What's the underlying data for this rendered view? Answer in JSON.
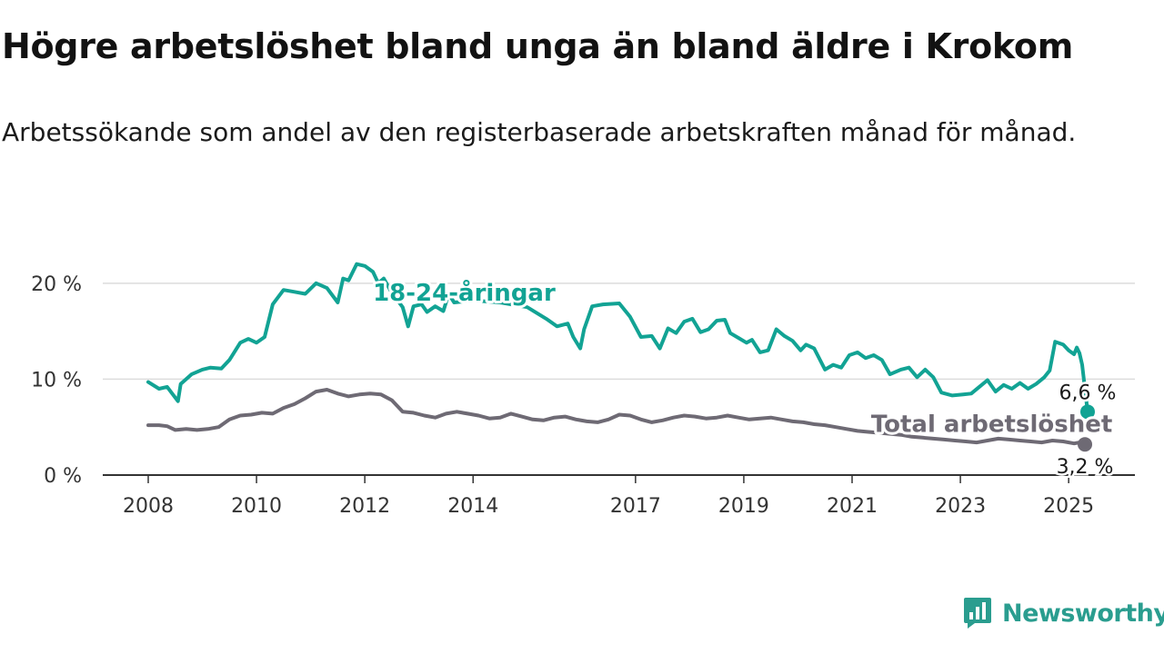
{
  "title": "Högre arbetslöshet bland unga än bland äldre i Krokom",
  "subtitle": "Arbetssökande som andel av den registerbaserade arbetskraften månad för månad.",
  "logo": {
    "text": "Newsworthy",
    "icon": "newsworthy-chart-icon"
  },
  "colors": {
    "youth": "#12a394",
    "total": "#6e6a74",
    "grid": "#dcdcdc",
    "axis": "#333333"
  },
  "chart_data": {
    "type": "line",
    "title": "Högre arbetslöshet bland unga än bland äldre i Krokom",
    "subtitle": "Arbetssökande som andel av den registerbaserade arbetskraften månad för månad.",
    "xlim": [
      2008.0,
      2025.35
    ],
    "ylim": [
      0,
      21.5
    ],
    "x_ticks": [
      2008,
      2010,
      2012,
      2014,
      2017,
      2019,
      2021,
      2023,
      2025
    ],
    "x_tick_labels": [
      "2008",
      "2010",
      "2012",
      "2014",
      "2017",
      "2019",
      "2021",
      "2023",
      "2025"
    ],
    "y_ticks": [
      0,
      10,
      20
    ],
    "y_tick_labels": [
      "0 %",
      "10 %",
      "20 %"
    ],
    "grid": true,
    "series": [
      {
        "name": "18-24-åringar",
        "label_at": [
          2012.15,
          18.2
        ],
        "end_label": "6,6 %",
        "points": [
          [
            2008.0,
            9.7
          ],
          [
            2008.2,
            9.0
          ],
          [
            2008.35,
            9.2
          ],
          [
            2008.55,
            7.7
          ],
          [
            2008.6,
            9.5
          ],
          [
            2008.8,
            10.5
          ],
          [
            2009.0,
            11.0
          ],
          [
            2009.15,
            11.2
          ],
          [
            2009.35,
            11.1
          ],
          [
            2009.5,
            12.0
          ],
          [
            2009.7,
            13.8
          ],
          [
            2009.85,
            14.2
          ],
          [
            2010.0,
            13.8
          ],
          [
            2010.15,
            14.4
          ],
          [
            2010.3,
            17.8
          ],
          [
            2010.5,
            19.3
          ],
          [
            2010.7,
            19.1
          ],
          [
            2010.9,
            18.9
          ],
          [
            2011.1,
            20.0
          ],
          [
            2011.3,
            19.5
          ],
          [
            2011.5,
            18.0
          ],
          [
            2011.6,
            20.5
          ],
          [
            2011.7,
            20.3
          ],
          [
            2011.85,
            22.0
          ],
          [
            2012.0,
            21.8
          ],
          [
            2012.15,
            21.2
          ],
          [
            2012.25,
            20.0
          ],
          [
            2012.35,
            20.5
          ],
          [
            2012.5,
            19.0
          ],
          [
            2012.7,
            17.5
          ],
          [
            2012.8,
            15.5
          ],
          [
            2012.9,
            17.6
          ],
          [
            2013.05,
            17.8
          ],
          [
            2013.15,
            17.0
          ],
          [
            2013.3,
            17.6
          ],
          [
            2013.45,
            17.1
          ],
          [
            2013.55,
            18.9
          ],
          [
            2013.65,
            18.0
          ],
          [
            2014.0,
            18.2
          ],
          [
            2014.5,
            18.0
          ],
          [
            2015.0,
            17.5
          ],
          [
            2015.35,
            16.3
          ],
          [
            2015.55,
            15.5
          ],
          [
            2015.75,
            15.8
          ],
          [
            2015.85,
            14.4
          ],
          [
            2015.98,
            13.2
          ],
          [
            2016.05,
            15.2
          ],
          [
            2016.2,
            17.6
          ],
          [
            2016.4,
            17.8
          ],
          [
            2016.7,
            17.9
          ],
          [
            2016.9,
            16.5
          ],
          [
            2017.1,
            14.4
          ],
          [
            2017.3,
            14.5
          ],
          [
            2017.45,
            13.2
          ],
          [
            2017.6,
            15.3
          ],
          [
            2017.75,
            14.8
          ],
          [
            2017.9,
            16.0
          ],
          [
            2018.05,
            16.3
          ],
          [
            2018.2,
            14.9
          ],
          [
            2018.35,
            15.2
          ],
          [
            2018.5,
            16.1
          ],
          [
            2018.65,
            16.2
          ],
          [
            2018.75,
            14.8
          ],
          [
            2018.9,
            14.3
          ],
          [
            2019.05,
            13.8
          ],
          [
            2019.15,
            14.1
          ],
          [
            2019.3,
            12.8
          ],
          [
            2019.45,
            13.0
          ],
          [
            2019.6,
            15.2
          ],
          [
            2019.75,
            14.5
          ],
          [
            2019.9,
            14.0
          ],
          [
            2020.05,
            13.0
          ],
          [
            2020.15,
            13.6
          ],
          [
            2020.3,
            13.2
          ],
          [
            2020.5,
            11.0
          ],
          [
            2020.65,
            11.5
          ],
          [
            2020.8,
            11.2
          ],
          [
            2020.95,
            12.5
          ],
          [
            2021.1,
            12.8
          ],
          [
            2021.25,
            12.2
          ],
          [
            2021.4,
            12.5
          ],
          [
            2021.55,
            12.0
          ],
          [
            2021.7,
            10.5
          ],
          [
            2021.9,
            11.0
          ],
          [
            2022.05,
            11.2
          ],
          [
            2022.2,
            10.2
          ],
          [
            2022.35,
            11.0
          ],
          [
            2022.5,
            10.2
          ],
          [
            2022.65,
            8.6
          ],
          [
            2022.85,
            8.3
          ],
          [
            2023.05,
            8.4
          ],
          [
            2023.2,
            8.5
          ],
          [
            2023.35,
            9.2
          ],
          [
            2023.5,
            9.9
          ],
          [
            2023.65,
            8.7
          ],
          [
            2023.8,
            9.4
          ],
          [
            2023.95,
            9.0
          ],
          [
            2024.1,
            9.6
          ],
          [
            2024.25,
            9.0
          ],
          [
            2024.4,
            9.5
          ],
          [
            2024.55,
            10.2
          ],
          [
            2024.65,
            10.9
          ],
          [
            2024.75,
            13.9
          ],
          [
            2024.9,
            13.6
          ],
          [
            2025.0,
            13.0
          ],
          [
            2025.1,
            12.6
          ],
          [
            2025.15,
            13.3
          ],
          [
            2025.2,
            12.7
          ],
          [
            2025.25,
            11.5
          ],
          [
            2025.35,
            6.6
          ]
        ]
      },
      {
        "name": "Total arbetslöshet",
        "label_at": [
          2021.35,
          4.5
        ],
        "end_label": "3,2 %",
        "points": [
          [
            2008.0,
            5.2
          ],
          [
            2008.2,
            5.2
          ],
          [
            2008.35,
            5.1
          ],
          [
            2008.5,
            4.7
          ],
          [
            2008.7,
            4.8
          ],
          [
            2008.9,
            4.7
          ],
          [
            2009.1,
            4.8
          ],
          [
            2009.3,
            5.0
          ],
          [
            2009.5,
            5.8
          ],
          [
            2009.7,
            6.2
          ],
          [
            2009.9,
            6.3
          ],
          [
            2010.1,
            6.5
          ],
          [
            2010.3,
            6.4
          ],
          [
            2010.5,
            7.0
          ],
          [
            2010.7,
            7.4
          ],
          [
            2010.9,
            8.0
          ],
          [
            2011.1,
            8.7
          ],
          [
            2011.3,
            8.9
          ],
          [
            2011.5,
            8.5
          ],
          [
            2011.7,
            8.2
          ],
          [
            2011.9,
            8.4
          ],
          [
            2012.1,
            8.5
          ],
          [
            2012.3,
            8.4
          ],
          [
            2012.5,
            7.8
          ],
          [
            2012.7,
            6.6
          ],
          [
            2012.9,
            6.5
          ],
          [
            2013.1,
            6.2
          ],
          [
            2013.3,
            6.0
          ],
          [
            2013.5,
            6.4
          ],
          [
            2013.7,
            6.6
          ],
          [
            2013.9,
            6.4
          ],
          [
            2014.1,
            6.2
          ],
          [
            2014.3,
            5.9
          ],
          [
            2014.5,
            6.0
          ],
          [
            2014.7,
            6.4
          ],
          [
            2014.9,
            6.1
          ],
          [
            2015.1,
            5.8
          ],
          [
            2015.3,
            5.7
          ],
          [
            2015.5,
            6.0
          ],
          [
            2015.7,
            6.1
          ],
          [
            2015.9,
            5.8
          ],
          [
            2016.1,
            5.6
          ],
          [
            2016.3,
            5.5
          ],
          [
            2016.5,
            5.8
          ],
          [
            2016.7,
            6.3
          ],
          [
            2016.9,
            6.2
          ],
          [
            2017.1,
            5.8
          ],
          [
            2017.3,
            5.5
          ],
          [
            2017.5,
            5.7
          ],
          [
            2017.7,
            6.0
          ],
          [
            2017.9,
            6.2
          ],
          [
            2018.1,
            6.1
          ],
          [
            2018.3,
            5.9
          ],
          [
            2018.5,
            6.0
          ],
          [
            2018.7,
            6.2
          ],
          [
            2018.9,
            6.0
          ],
          [
            2019.1,
            5.8
          ],
          [
            2019.3,
            5.9
          ],
          [
            2019.5,
            6.0
          ],
          [
            2019.7,
            5.8
          ],
          [
            2019.9,
            5.6
          ],
          [
            2020.1,
            5.5
          ],
          [
            2020.3,
            5.3
          ],
          [
            2020.5,
            5.2
          ],
          [
            2020.7,
            5.0
          ],
          [
            2020.9,
            4.8
          ],
          [
            2021.1,
            4.6
          ],
          [
            2021.3,
            4.5
          ],
          [
            2021.5,
            4.4
          ],
          [
            2021.7,
            4.3
          ],
          [
            2021.9,
            4.2
          ],
          [
            2022.1,
            4.0
          ],
          [
            2022.3,
            3.9
          ],
          [
            2022.5,
            3.8
          ],
          [
            2022.7,
            3.7
          ],
          [
            2022.9,
            3.6
          ],
          [
            2023.1,
            3.5
          ],
          [
            2023.3,
            3.4
          ],
          [
            2023.5,
            3.6
          ],
          [
            2023.7,
            3.8
          ],
          [
            2023.9,
            3.7
          ],
          [
            2024.1,
            3.6
          ],
          [
            2024.3,
            3.5
          ],
          [
            2024.5,
            3.4
          ],
          [
            2024.7,
            3.6
          ],
          [
            2024.9,
            3.5
          ],
          [
            2025.1,
            3.3
          ],
          [
            2025.2,
            3.4
          ],
          [
            2025.3,
            3.2
          ]
        ]
      }
    ]
  }
}
